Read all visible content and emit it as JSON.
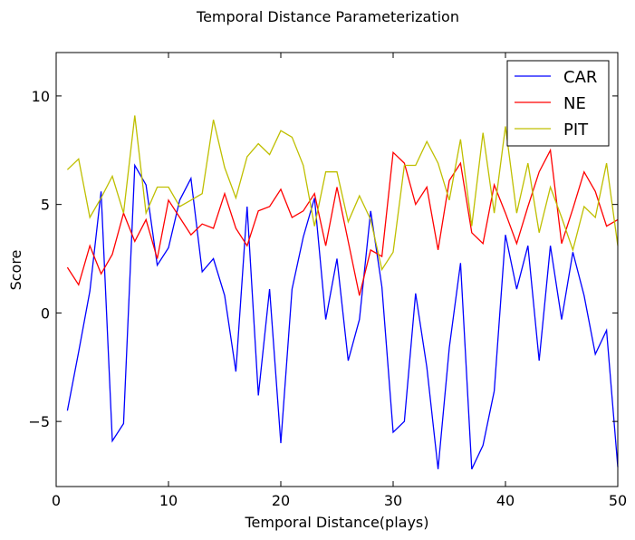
{
  "chart_data": {
    "type": "line",
    "title": "Temporal Distance Parameterization",
    "xlabel": "Temporal Distance(plays)",
    "ylabel": "Score",
    "xlim": [
      0,
      50
    ],
    "ylim": [
      -8,
      12
    ],
    "xticks": [
      0,
      10,
      20,
      30,
      40,
      50
    ],
    "yticks": [
      -5,
      0,
      5,
      10
    ],
    "xtick_labels": [
      "0",
      "10",
      "20",
      "30",
      "40",
      "50"
    ],
    "ytick_labels": [
      "−5",
      "0",
      "5",
      "10"
    ],
    "grid": false,
    "legend_position": "top-right",
    "x": [
      1,
      2,
      3,
      4,
      5,
      6,
      7,
      8,
      9,
      10,
      11,
      12,
      13,
      14,
      15,
      16,
      17,
      18,
      19,
      20,
      21,
      22,
      23,
      24,
      25,
      26,
      27,
      28,
      29,
      30,
      31,
      32,
      33,
      34,
      35,
      36,
      37,
      38,
      39,
      40,
      41,
      42,
      43,
      44,
      45,
      46,
      47,
      48,
      49,
      50
    ],
    "series": [
      {
        "name": "CAR",
        "color": "#0000ff",
        "values": [
          -4.5,
          -1.8,
          1.0,
          5.6,
          -5.9,
          -5.1,
          6.8,
          5.9,
          2.2,
          3.0,
          5.2,
          6.2,
          1.9,
          2.5,
          0.8,
          -2.7,
          4.9,
          -3.8,
          1.1,
          -6.0,
          1.1,
          3.5,
          5.3,
          -0.3,
          2.5,
          -2.2,
          -0.3,
          4.7,
          1.2,
          -5.5,
          -5.0,
          0.9,
          -2.5,
          -7.2,
          -1.6,
          2.3,
          -7.2,
          -6.1,
          -3.6,
          3.6,
          1.1,
          3.1,
          -2.2,
          3.1,
          -0.3,
          2.8,
          0.8,
          -1.9,
          -0.8,
          -7.1
        ]
      },
      {
        "name": "NE",
        "color": "#ff0000",
        "values": [
          2.1,
          1.3,
          3.1,
          1.8,
          2.7,
          4.6,
          3.3,
          4.3,
          2.5,
          5.2,
          4.4,
          3.6,
          4.1,
          3.9,
          5.5,
          3.9,
          3.1,
          4.7,
          4.9,
          5.7,
          4.4,
          4.7,
          5.5,
          3.1,
          5.8,
          3.3,
          0.8,
          2.9,
          2.6,
          7.4,
          6.9,
          5.0,
          5.8,
          2.9,
          6.1,
          6.9,
          3.7,
          3.2,
          5.9,
          4.6,
          3.2,
          4.9,
          6.5,
          7.5,
          3.2,
          4.8,
          6.5,
          5.6,
          4.0,
          4.3
        ]
      },
      {
        "name": "PIT",
        "color": "#bfbf00",
        "values": [
          6.6,
          7.1,
          4.4,
          5.3,
          6.3,
          4.6,
          9.1,
          4.6,
          5.8,
          5.8,
          4.9,
          5.2,
          5.5,
          8.9,
          6.7,
          5.3,
          7.2,
          7.8,
          7.3,
          8.4,
          8.1,
          6.8,
          4.0,
          6.5,
          6.5,
          4.2,
          5.4,
          4.3,
          2.0,
          2.8,
          6.8,
          6.8,
          7.9,
          6.9,
          5.2,
          8.0,
          4.0,
          8.3,
          4.6,
          8.6,
          4.6,
          6.9,
          3.7,
          5.8,
          4.4,
          2.9,
          4.9,
          4.4,
          6.9,
          3.1
        ]
      }
    ]
  }
}
